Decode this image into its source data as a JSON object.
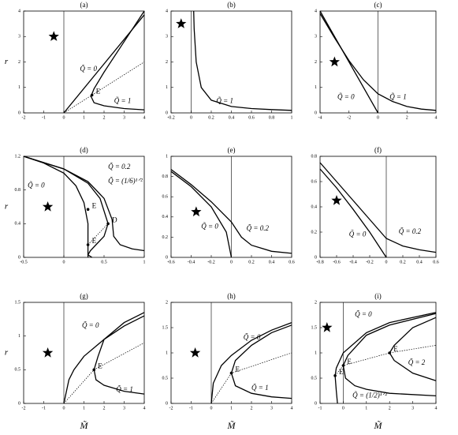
{
  "chart_data": [
    {
      "type": "line",
      "title": "(a)",
      "ylabel": "r",
      "xlim": [
        -2,
        4
      ],
      "ylim": [
        0,
        4
      ],
      "xticks": [
        -2,
        -1,
        0,
        1,
        2,
        3,
        4
      ],
      "yticks": [
        0,
        1,
        2,
        3,
        4
      ],
      "vline": 0,
      "series": [
        {
          "name": "Q̃ = 0",
          "color": "#000000",
          "x": [
            0,
            4
          ],
          "values": [
            0,
            3.85
          ]
        },
        {
          "name": "Q̃ = 1",
          "color": "#000000",
          "x": [
            4,
            3,
            2,
            1.5,
            1.35,
            1.5,
            2,
            3,
            4
          ],
          "values": [
            4,
            2.8,
            1.6,
            0.95,
            0.65,
            0.4,
            0.28,
            0.17,
            0.12
          ]
        },
        {
          "color": "#000000",
          "dash": true,
          "x": [
            0,
            4
          ],
          "values": [
            0,
            2
          ]
        }
      ],
      "points": [
        {
          "label": "E",
          "x": 1.4,
          "y": 0.7
        }
      ]
    },
    {
      "type": "line",
      "title": "(b)",
      "xlim": [
        -0.2,
        1
      ],
      "ylim": [
        0,
        4
      ],
      "xticks": [
        -0.2,
        0,
        0.2,
        0.4,
        0.6,
        0.8,
        1
      ],
      "yticks": [
        0,
        1,
        2,
        3,
        4
      ],
      "vline": 0,
      "series": [
        {
          "name": "Q̃ = 1",
          "color": "#000000",
          "x": [
            0.025,
            0.03,
            0.05,
            0.1,
            0.2,
            0.4,
            0.6,
            0.8,
            1
          ],
          "values": [
            4,
            3.3,
            2,
            1,
            0.5,
            0.25,
            0.17,
            0.13,
            0.1
          ]
        }
      ],
      "points": []
    },
    {
      "type": "line",
      "title": "(c)",
      "xlim": [
        -4,
        4
      ],
      "ylim": [
        0,
        4
      ],
      "xticks": [
        -4,
        -2,
        0,
        2,
        4
      ],
      "yticks": [
        0,
        1,
        2,
        3,
        4
      ],
      "vline": 0,
      "series": [
        {
          "name": "Q̃ = 0",
          "color": "#000000",
          "x": [
            -4,
            0
          ],
          "values": [
            4,
            0
          ]
        },
        {
          "name": "Q̃ = 1",
          "color": "#000000",
          "x": [
            -4,
            -3,
            -2,
            -1,
            0,
            1,
            2,
            3,
            4
          ],
          "values": [
            3.9,
            2.95,
            2.05,
            1.3,
            0.75,
            0.45,
            0.25,
            0.15,
            0.1
          ]
        }
      ],
      "points": []
    },
    {
      "type": "line",
      "title": "(d)",
      "ylabel": "r",
      "xlim": [
        -0.5,
        1
      ],
      "ylim": [
        0,
        1.2
      ],
      "xticks": [
        -0.5,
        0,
        0.5,
        1
      ],
      "yticks": [
        0,
        0.4,
        0.8,
        1.2
      ],
      "vline": 0,
      "series": [
        {
          "name": "Q̃ = 0",
          "color": "#000000",
          "x": [
            -0.5,
            -0.25,
            0,
            0.15,
            0.25,
            0.3,
            0.3
          ],
          "values": [
            1.2,
            1.12,
            1,
            0.85,
            0.65,
            0.4,
            0
          ]
        },
        {
          "name": "Q̃ = (1/6)¹ᐟ²",
          "color": "#000000",
          "x": [
            -0.5,
            0,
            0.3,
            0.45,
            0.55,
            0.5,
            0.4,
            0.33,
            0.3,
            0.35
          ],
          "values": [
            1.2,
            1.05,
            0.88,
            0.7,
            0.4,
            0.25,
            0.15,
            0.08,
            0.03,
            0
          ]
        },
        {
          "name": "Q̃ = 0.2",
          "color": "#000000",
          "x": [
            -0.5,
            0,
            0.3,
            0.5,
            0.6,
            0.62,
            0.7,
            0.85,
            1
          ],
          "values": [
            1.2,
            1.05,
            0.9,
            0.7,
            0.45,
            0.25,
            0.15,
            0.1,
            0.08
          ]
        },
        {
          "color": "#000000",
          "dash": true,
          "x": [
            0.3,
            0.4,
            0.55
          ],
          "values": [
            0.15,
            0.25,
            0.4
          ]
        }
      ],
      "points": [
        {
          "label": "E",
          "x": 0.3,
          "y": 0.57
        },
        {
          "label": "D",
          "x": 0.55,
          "y": 0.4
        },
        {
          "label": "E",
          "x": 0.3,
          "y": 0.15
        }
      ]
    },
    {
      "type": "line",
      "title": "(e)",
      "xlim": [
        -0.6,
        0.6
      ],
      "ylim": [
        0,
        1
      ],
      "xticks": [
        -0.6,
        -0.4,
        -0.2,
        0,
        0.2,
        0.4,
        0.6
      ],
      "yticks": [
        0,
        0.2,
        0.4,
        0.6,
        0.8,
        1
      ],
      "vline": 0,
      "series": [
        {
          "name": "Q̃ = 0",
          "color": "#000000",
          "x": [
            -0.6,
            -0.4,
            -0.2,
            -0.05,
            0
          ],
          "values": [
            0.85,
            0.7,
            0.5,
            0.25,
            0
          ]
        },
        {
          "name": "Q̃ = 0.2",
          "color": "#000000",
          "x": [
            -0.6,
            -0.4,
            -0.2,
            0,
            0.1,
            0.2,
            0.4,
            0.6
          ],
          "values": [
            0.87,
            0.72,
            0.55,
            0.35,
            0.2,
            0.12,
            0.06,
            0.04
          ]
        }
      ],
      "points": []
    },
    {
      "type": "line",
      "title": "(f)",
      "xlim": [
        -0.8,
        0.6
      ],
      "ylim": [
        0,
        0.8
      ],
      "xticks": [
        -0.8,
        -0.6,
        -0.4,
        -0.2,
        0,
        0.2,
        0.4,
        0.6
      ],
      "yticks": [
        0,
        0.2,
        0.4,
        0.6,
        0.8
      ],
      "vline": 0,
      "series": [
        {
          "name": "Q̃ = 0",
          "color": "#000000",
          "x": [
            -0.8,
            -0.6,
            -0.4,
            -0.2,
            0
          ],
          "values": [
            0.7,
            0.55,
            0.38,
            0.2,
            0
          ]
        },
        {
          "name": "Q̃ = 0.2",
          "color": "#000000",
          "x": [
            -0.8,
            -0.6,
            -0.4,
            -0.2,
            0,
            0.2,
            0.4,
            0.6
          ],
          "values": [
            0.75,
            0.6,
            0.45,
            0.3,
            0.15,
            0.09,
            0.06,
            0.04
          ]
        }
      ],
      "points": []
    },
    {
      "type": "line",
      "title": "(g)",
      "ylabel": "r",
      "xlabel": "M̃",
      "xlim": [
        -2,
        4
      ],
      "ylim": [
        0,
        1.5
      ],
      "xticks": [
        -2,
        -1,
        0,
        1,
        2,
        3,
        4
      ],
      "yticks": [
        0,
        0.5,
        1,
        1.5
      ],
      "vline": 0,
      "series": [
        {
          "name": "Q̃ = 0",
          "color": "#000000",
          "x": [
            0,
            0.25,
            0.5,
            1,
            2,
            3,
            4
          ],
          "values": [
            0,
            0.35,
            0.5,
            0.7,
            0.95,
            1.15,
            1.3
          ]
        },
        {
          "name": "Q̃ = 1",
          "color": "#000000",
          "x": [
            4,
            3,
            2,
            1.7,
            1.5,
            1.6,
            2,
            3,
            4
          ],
          "values": [
            1.35,
            1.2,
            0.95,
            0.7,
            0.5,
            0.35,
            0.27,
            0.18,
            0.14
          ]
        },
        {
          "color": "#000000",
          "dash": true,
          "x": [
            0,
            1.5,
            4
          ],
          "values": [
            0,
            0.5,
            0.9
          ]
        }
      ],
      "points": [
        {
          "label": "E",
          "x": 1.5,
          "y": 0.5
        }
      ]
    },
    {
      "type": "line",
      "title": "(h)",
      "xlabel": "M̃",
      "xlim": [
        -2,
        4
      ],
      "ylim": [
        0,
        2
      ],
      "xticks": [
        -2,
        -1,
        0,
        1,
        2,
        3,
        4
      ],
      "yticks": [
        0,
        0.5,
        1,
        1.5,
        2
      ],
      "vline": 0,
      "series": [
        {
          "name": "Q̃ = 0",
          "color": "#000000",
          "x": [
            0,
            0.1,
            0.5,
            1,
            2,
            3,
            4
          ],
          "values": [
            0,
            0.4,
            0.75,
            0.95,
            1.25,
            1.45,
            1.6
          ]
        },
        {
          "name": "Q̃ = 1",
          "color": "#000000",
          "x": [
            4,
            3,
            2,
            1.2,
            1,
            1.2,
            2,
            3,
            4
          ],
          "values": [
            1.55,
            1.4,
            1.15,
            0.85,
            0.6,
            0.35,
            0.2,
            0.13,
            0.1
          ]
        },
        {
          "color": "#000000",
          "dash": true,
          "x": [
            0,
            1,
            4
          ],
          "values": [
            0,
            0.6,
            1
          ]
        }
      ],
      "points": [
        {
          "label": "E",
          "x": 1,
          "y": 0.6
        }
      ]
    },
    {
      "type": "line",
      "title": "(i)",
      "xlabel": "M̃",
      "xlim": [
        -1,
        4
      ],
      "ylim": [
        0,
        2
      ],
      "xticks": [
        -1,
        0,
        1,
        2,
        3,
        4
      ],
      "yticks": [
        0,
        0.5,
        1,
        1.5,
        2
      ],
      "vline": 0,
      "series": [
        {
          "name": "Q̃ = 0",
          "color": "#000000",
          "x": [
            4,
            2,
            1,
            0,
            -0.3,
            -0.35,
            -0.3,
            -0.25
          ],
          "values": [
            1.8,
            1.6,
            1.4,
            1,
            0.7,
            0.55,
            0.25,
            0
          ]
        },
        {
          "name": "Q̃ = (1/2)¹ᐟ²",
          "color": "#000000",
          "x": [
            4,
            2,
            1,
            0.2,
            0,
            0.1,
            0.5,
            1,
            2,
            4
          ],
          "values": [
            1.78,
            1.55,
            1.35,
            0.95,
            0.75,
            0.5,
            0.35,
            0.28,
            0.2,
            0.15
          ]
        },
        {
          "name": "Q̃ = 2",
          "color": "#000000",
          "x": [
            4,
            3,
            2.2,
            2,
            2.2,
            3,
            4
          ],
          "values": [
            1.7,
            1.5,
            1.15,
            1,
            0.85,
            0.6,
            0.45
          ]
        },
        {
          "color": "#000000",
          "dash": true,
          "x": [
            -0.35,
            0,
            2,
            4
          ],
          "values": [
            0.55,
            0.75,
            1,
            1.15
          ]
        }
      ],
      "points": [
        {
          "label": "E",
          "x": -0.35,
          "y": 0.55
        },
        {
          "label": "E",
          "x": 0,
          "y": 0.75
        },
        {
          "label": "E",
          "x": 2,
          "y": 1
        }
      ]
    }
  ]
}
